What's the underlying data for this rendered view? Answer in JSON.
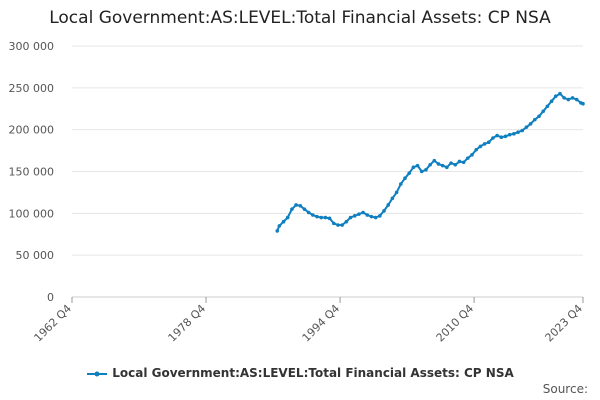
{
  "chart_data": {
    "type": "line",
    "title": "Local Government:AS:LEVEL:Total Financial Assets: CP NSA",
    "xlabel": "",
    "ylabel": "",
    "x_ticks": [
      "1962 Q4",
      "1978 Q4",
      "1994 Q4",
      "2010 Q4",
      "2023 Q4"
    ],
    "x_tick_positions": [
      1962.75,
      1978.75,
      1994.75,
      2010.75,
      2023.75
    ],
    "xlim": [
      1962.75,
      2023.75
    ],
    "y_ticks": [
      "0",
      "50 000",
      "100 000",
      "150 000",
      "200 000",
      "250 000",
      "300 000"
    ],
    "ylim": [
      0,
      300000
    ],
    "grid": "horizontal",
    "legend_position": "bottom",
    "series": [
      {
        "name": "Local Government:AS:LEVEL:Total Financial Assets: CP NSA",
        "color": "#0f7fbf",
        "x": [
          1987.25,
          1987.5,
          1988.0,
          1988.5,
          1989.0,
          1989.5,
          1990.0,
          1990.5,
          1991.0,
          1991.5,
          1992.0,
          1992.5,
          1993.0,
          1993.5,
          1994.0,
          1994.5,
          1995.0,
          1995.5,
          1996.0,
          1996.5,
          1997.0,
          1997.5,
          1998.0,
          1998.5,
          1999.0,
          1999.5,
          2000.0,
          2000.5,
          2001.0,
          2001.5,
          2002.0,
          2002.5,
          2003.0,
          2003.5,
          2004.0,
          2004.5,
          2005.0,
          2005.5,
          2006.0,
          2006.5,
          2007.0,
          2007.5,
          2008.0,
          2008.5,
          2009.0,
          2009.5,
          2010.0,
          2010.5,
          2011.0,
          2011.5,
          2012.0,
          2012.5,
          2013.0,
          2013.5,
          2014.0,
          2014.5,
          2015.0,
          2015.5,
          2016.0,
          2016.5,
          2017.0,
          2017.5,
          2018.0,
          2018.5,
          2019.0,
          2019.5,
          2020.0,
          2020.5,
          2021.0,
          2021.5,
          2022.0,
          2022.5,
          2023.0,
          2023.5,
          2023.75
        ],
        "values": [
          79000,
          85000,
          90000,
          95000,
          105000,
          110000,
          109000,
          105000,
          101000,
          98000,
          96000,
          95000,
          95000,
          94000,
          88000,
          86000,
          86000,
          90000,
          95000,
          97000,
          99000,
          101000,
          98000,
          96000,
          95000,
          97000,
          103000,
          110000,
          118000,
          125000,
          135000,
          142000,
          148000,
          155000,
          157000,
          150000,
          152000,
          158000,
          163000,
          159000,
          157000,
          155000,
          160000,
          158000,
          162000,
          161000,
          166000,
          170000,
          176000,
          180000,
          183000,
          185000,
          190000,
          193000,
          191000,
          192000,
          194000,
          195000,
          197000,
          199000,
          203000,
          207000,
          212000,
          216000,
          222000,
          228000,
          234000,
          240000,
          243000,
          238000,
          236000,
          238000,
          236000,
          232000,
          231000
        ]
      }
    ]
  },
  "source_label": "Source:"
}
